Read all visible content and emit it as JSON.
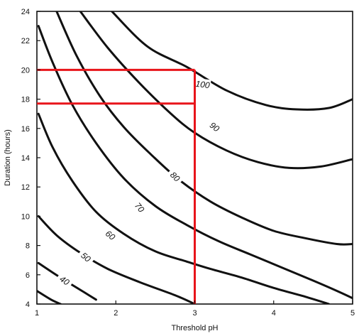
{
  "chart_data": {
    "type": "line",
    "xlabel": "Threshold pH",
    "ylabel": "Duration (hours)",
    "xlim": [
      1,
      5
    ],
    "ylim": [
      4,
      24
    ],
    "x_ticks": [
      1,
      2,
      3,
      4,
      5
    ],
    "y_ticks": [
      4,
      6,
      8,
      10,
      12,
      14,
      16,
      18,
      20,
      22,
      24
    ],
    "grid": false,
    "series": [
      {
        "name": "100",
        "label_at": [
          3.1,
          19.0
        ],
        "label_rotation": 8,
        "points": [
          [
            1.95,
            24
          ],
          [
            2.4,
            21.6
          ],
          [
            2.9,
            20.2
          ],
          [
            3.4,
            18.6
          ],
          [
            3.9,
            17.6
          ],
          [
            4.3,
            17.3
          ],
          [
            4.7,
            17.4
          ],
          [
            5.0,
            18.0
          ]
        ]
      },
      {
        "name": "90",
        "label_at": [
          3.25,
          16.1
        ],
        "label_rotation": 38,
        "points": [
          [
            1.55,
            24
          ],
          [
            1.9,
            21.5
          ],
          [
            2.3,
            19.1
          ],
          [
            2.7,
            17.0
          ],
          [
            3.0,
            15.7
          ],
          [
            3.4,
            14.5
          ],
          [
            3.8,
            13.7
          ],
          [
            4.2,
            13.3
          ],
          [
            4.6,
            13.4
          ],
          [
            5.0,
            13.9
          ]
        ]
      },
      {
        "name": "80",
        "label_at": [
          2.75,
          12.7
        ],
        "label_rotation": 45,
        "points": [
          [
            1.25,
            24
          ],
          [
            1.5,
            21.0
          ],
          [
            1.8,
            18.2
          ],
          [
            2.1,
            16.1
          ],
          [
            2.45,
            14.2
          ],
          [
            2.8,
            12.5
          ],
          [
            3.2,
            11.0
          ],
          [
            3.6,
            9.9
          ],
          [
            4.0,
            9.0
          ],
          [
            4.4,
            8.5
          ],
          [
            4.8,
            8.1
          ],
          [
            5.0,
            8.1
          ]
        ]
      },
      {
        "name": "70",
        "label_at": [
          2.3,
          10.6
        ],
        "label_rotation": 50,
        "points": [
          [
            1.02,
            23.0
          ],
          [
            1.2,
            20.5
          ],
          [
            1.45,
            17.6
          ],
          [
            1.75,
            15.0
          ],
          [
            2.1,
            12.6
          ],
          [
            2.5,
            10.7
          ],
          [
            2.9,
            9.4
          ],
          [
            3.3,
            8.3
          ],
          [
            3.7,
            7.4
          ],
          [
            4.1,
            6.5
          ],
          [
            4.5,
            5.6
          ],
          [
            4.8,
            4.9
          ],
          [
            5.0,
            4.4
          ]
        ]
      },
      {
        "name": "60",
        "label_at": [
          1.93,
          8.7
        ],
        "label_rotation": 40,
        "points": [
          [
            1.02,
            17.0
          ],
          [
            1.2,
            14.7
          ],
          [
            1.45,
            12.4
          ],
          [
            1.75,
            10.3
          ],
          [
            2.1,
            8.8
          ],
          [
            2.5,
            7.6
          ],
          [
            2.9,
            6.9
          ],
          [
            3.2,
            6.4
          ],
          [
            3.6,
            5.8
          ],
          [
            4.0,
            5.1
          ],
          [
            4.4,
            4.5
          ],
          [
            4.7,
            4.0
          ]
        ]
      },
      {
        "name": "50",
        "label_at": [
          1.62,
          7.2
        ],
        "label_rotation": 40,
        "points": [
          [
            1.02,
            10.0
          ],
          [
            1.25,
            8.7
          ],
          [
            1.55,
            7.5
          ],
          [
            1.9,
            6.4
          ],
          [
            2.3,
            5.5
          ],
          [
            2.75,
            4.6
          ],
          [
            3.0,
            4.0
          ]
        ]
      },
      {
        "name": "40",
        "label_at": [
          1.35,
          5.6
        ],
        "label_rotation": 35,
        "points": [
          [
            1.02,
            6.8
          ],
          [
            1.3,
            5.8
          ],
          [
            1.6,
            4.8
          ],
          [
            1.75,
            4.3
          ]
        ]
      },
      {
        "name": "",
        "points": [
          [
            1.0,
            4.9
          ],
          [
            1.18,
            4.3
          ],
          [
            1.3,
            4.0
          ]
        ]
      }
    ],
    "reference_lines": {
      "color": "#e8141a",
      "vertical_x": 3,
      "horizontal_y": [
        20,
        17.7
      ]
    }
  }
}
